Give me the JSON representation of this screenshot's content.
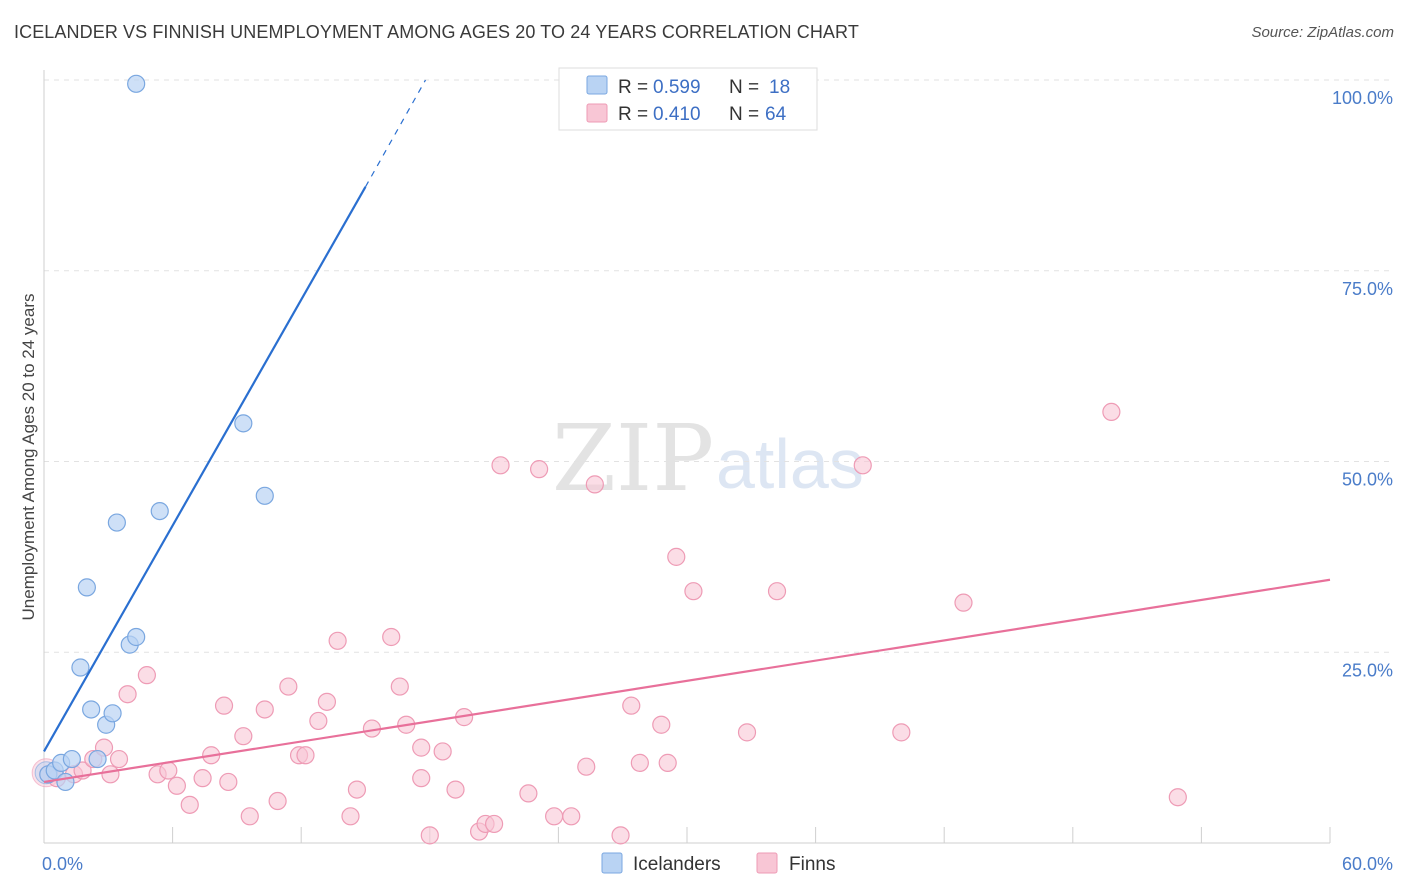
{
  "title": "ICELANDER VS FINNISH UNEMPLOYMENT AMONG AGES 20 TO 24 YEARS CORRELATION CHART",
  "source": "Source: ZipAtlas.com",
  "watermark": {
    "zip": "ZIP",
    "atlas": "atlas"
  },
  "colors": {
    "blue_fill": "#b9d3f3",
    "blue_stroke": "#7aa7e0",
    "blue_line": "#2a6fd0",
    "pink_fill": "#f8c6d5",
    "pink_stroke": "#ee9bb5",
    "pink_line": "#e8709a",
    "grid": "#e2e2e2",
    "tick_text": "#4a7cc9"
  },
  "legend": {
    "rows": [
      {
        "r_label": "R =",
        "r_value": "0.599",
        "n_label": "N =",
        "n_value": "18"
      },
      {
        "r_label": "R =",
        "r_value": "0.410",
        "n_label": "N =",
        "n_value": "64"
      }
    ]
  },
  "chart_data": {
    "type": "scatter",
    "xlabel": "",
    "ylabel": "Unemployment Among Ages 20 to 24 years",
    "xlim": [
      0,
      60
    ],
    "ylim": [
      0,
      100
    ],
    "x_tick_labels": [
      "0.0%",
      "60.0%"
    ],
    "y_ticks": [
      25,
      50,
      75,
      100
    ],
    "y_tick_labels": [
      "25.0%",
      "50.0%",
      "75.0%",
      "100.0%"
    ],
    "grid": true,
    "legend_position": "bottom-center",
    "series": [
      {
        "name": "Icelanders",
        "r": 0.599,
        "n": 18,
        "trend": {
          "x0": 0,
          "y0": 12,
          "x1": 15,
          "y1": 86,
          "dash_x_end": 17.8,
          "dash_y_end": 100
        },
        "points": [
          [
            0.2,
            9.0
          ],
          [
            0.5,
            9.5
          ],
          [
            0.8,
            10.5
          ],
          [
            1.0,
            8.0
          ],
          [
            1.3,
            11.0
          ],
          [
            1.7,
            23.0
          ],
          [
            2.0,
            33.5
          ],
          [
            2.2,
            17.5
          ],
          [
            2.5,
            11.0
          ],
          [
            2.9,
            15.5
          ],
          [
            3.2,
            17.0
          ],
          [
            3.4,
            42.0
          ],
          [
            4.0,
            26.0
          ],
          [
            4.3,
            27.0
          ],
          [
            4.3,
            99.5
          ],
          [
            5.4,
            43.5
          ],
          [
            9.3,
            55.0
          ],
          [
            10.3,
            45.5
          ]
        ]
      },
      {
        "name": "Finns",
        "r": 0.41,
        "n": 64,
        "trend": {
          "x0": 0,
          "y0": 8,
          "x1": 60,
          "y1": 34.5
        },
        "points": [
          [
            0.2,
            9.0
          ],
          [
            0.6,
            8.5
          ],
          [
            1.4,
            9.0
          ],
          [
            1.8,
            9.5
          ],
          [
            2.3,
            11.0
          ],
          [
            2.8,
            12.5
          ],
          [
            3.1,
            9.0
          ],
          [
            3.5,
            11.0
          ],
          [
            3.9,
            19.5
          ],
          [
            4.8,
            22.0
          ],
          [
            5.3,
            9.0
          ],
          [
            5.8,
            9.5
          ],
          [
            6.2,
            7.5
          ],
          [
            6.8,
            5.0
          ],
          [
            7.4,
            8.5
          ],
          [
            7.8,
            11.5
          ],
          [
            8.4,
            18.0
          ],
          [
            8.6,
            8.0
          ],
          [
            9.3,
            14.0
          ],
          [
            9.6,
            3.5
          ],
          [
            10.3,
            17.5
          ],
          [
            10.9,
            5.5
          ],
          [
            11.4,
            20.5
          ],
          [
            11.9,
            11.5
          ],
          [
            12.2,
            11.5
          ],
          [
            12.8,
            16.0
          ],
          [
            13.2,
            18.5
          ],
          [
            13.7,
            26.5
          ],
          [
            14.3,
            3.5
          ],
          [
            14.6,
            7.0
          ],
          [
            15.3,
            15.0
          ],
          [
            16.2,
            27.0
          ],
          [
            16.6,
            20.5
          ],
          [
            16.9,
            15.5
          ],
          [
            17.6,
            12.5
          ],
          [
            17.6,
            8.5
          ],
          [
            18.0,
            1.0
          ],
          [
            18.6,
            12.0
          ],
          [
            19.2,
            7.0
          ],
          [
            19.6,
            16.5
          ],
          [
            20.3,
            1.5
          ],
          [
            20.6,
            2.5
          ],
          [
            21.0,
            2.5
          ],
          [
            21.3,
            49.5
          ],
          [
            22.6,
            6.5
          ],
          [
            23.1,
            49.0
          ],
          [
            23.8,
            3.5
          ],
          [
            24.6,
            3.5
          ],
          [
            25.3,
            10.0
          ],
          [
            25.7,
            47.0
          ],
          [
            26.9,
            1.0
          ],
          [
            27.4,
            18.0
          ],
          [
            27.8,
            10.5
          ],
          [
            28.8,
            15.5
          ],
          [
            29.1,
            10.5
          ],
          [
            29.5,
            37.5
          ],
          [
            30.3,
            33.0
          ],
          [
            32.8,
            14.5
          ],
          [
            34.2,
            33.0
          ],
          [
            38.2,
            49.5
          ],
          [
            40.0,
            14.5
          ],
          [
            42.9,
            31.5
          ],
          [
            49.8,
            56.5
          ],
          [
            52.9,
            6.0
          ]
        ]
      }
    ]
  },
  "bottom_legend": [
    {
      "label": "Icelanders"
    },
    {
      "label": "Finns"
    }
  ]
}
